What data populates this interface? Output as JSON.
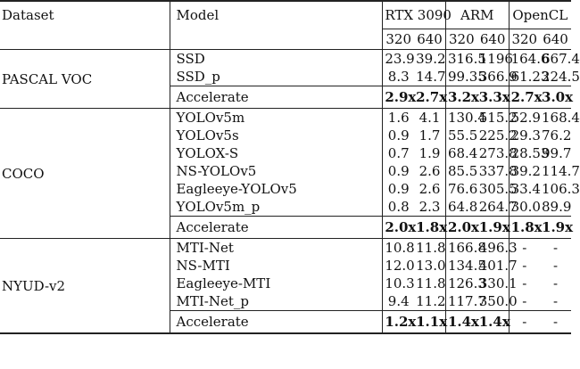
{
  "header": {
    "dataset": "Dataset",
    "model": "Model",
    "groups": [
      "RTX 3090",
      "ARM",
      "OpenCL"
    ],
    "sizes": [
      "320",
      "640",
      "320",
      "640",
      "320",
      "640"
    ]
  },
  "sections": [
    {
      "dataset": "PASCAL VOC",
      "rows": [
        {
          "model": "SSD",
          "values": [
            "23.9",
            "39.2",
            "316.5",
            "1196",
            "164.6",
            "667.4"
          ]
        },
        {
          "model": "SSD_p",
          "values": [
            "8.3",
            "14.7",
            "99.35",
            "366.9",
            "61.23",
            "224.5"
          ]
        }
      ],
      "accel": {
        "label": "Accelerate",
        "values": [
          "2.9x",
          "2.7x",
          "3.2x",
          "3.3x",
          "2.7x",
          "3.0x"
        ]
      }
    },
    {
      "dataset": "COCO",
      "rows": [
        {
          "model": "YOLOv5m",
          "values": [
            "1.6",
            "4.1",
            "130.4",
            "515.2",
            "52.9",
            "168.4"
          ]
        },
        {
          "model": "YOLOv5s",
          "values": [
            "0.9",
            "1.7",
            "55.5",
            "225.2",
            "29.3",
            "76.2"
          ]
        },
        {
          "model": "YOLOX-S",
          "values": [
            "0.7",
            "1.9",
            "68.4",
            "273.8",
            "28.53",
            "99.7"
          ]
        },
        {
          "model": "NS-YOLOv5",
          "values": [
            "0.9",
            "2.6",
            "85.5",
            "337.8",
            "39.2",
            "114.7"
          ]
        },
        {
          "model": "Eagleeye-YOLOv5",
          "values": [
            "0.9",
            "2.6",
            "76.6",
            "305.5",
            "33.4",
            "106.3"
          ]
        },
        {
          "model": "YOLOv5m_p",
          "values": [
            "0.8",
            "2.3",
            "64.8",
            "264.7",
            "30.0",
            "89.9"
          ]
        }
      ],
      "accel": {
        "label": "Accelerate",
        "values": [
          "2.0x",
          "1.8x",
          "2.0x",
          "1.9x",
          "1.8x",
          "1.9x"
        ]
      }
    },
    {
      "dataset": "NYUD-v2",
      "rows": [
        {
          "model": "MTI-Net",
          "values": [
            "10.8",
            "11.8",
            "166.8",
            "496.3",
            "-",
            "-"
          ]
        },
        {
          "model": "NS-MTI",
          "values": [
            "12.0",
            "13.0",
            "134.5",
            "401.7",
            "-",
            "-"
          ]
        },
        {
          "model": "Eagleeye-MTI",
          "values": [
            "10.3",
            "11.8",
            "126.3",
            "330.1",
            "-",
            "-"
          ]
        },
        {
          "model": "MTI-Net_p",
          "values": [
            "9.4",
            "11.2",
            "117.7",
            "350.0",
            "-",
            "-"
          ]
        }
      ],
      "accel": {
        "label": "Accelerate",
        "values": [
          "1.2x",
          "1.1x",
          "1.4x",
          "1.4x",
          "-",
          "-"
        ]
      }
    }
  ]
}
